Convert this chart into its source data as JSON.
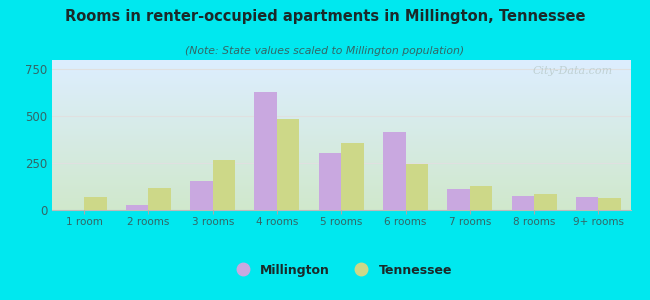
{
  "title": "Rooms in renter-occupied apartments in Millington, Tennessee",
  "subtitle": "(Note: State values scaled to Millington population)",
  "categories": [
    "1 room",
    "2 rooms",
    "3 rooms",
    "4 rooms",
    "5 rooms",
    "6 rooms",
    "7 rooms",
    "8 rooms",
    "9+ rooms"
  ],
  "millington": [
    0,
    28,
    155,
    630,
    305,
    415,
    110,
    75,
    72
  ],
  "tennessee": [
    72,
    115,
    268,
    485,
    360,
    245,
    130,
    88,
    65
  ],
  "millington_color": "#c9a8e0",
  "tennessee_color": "#cdd888",
  "bar_width": 0.35,
  "ylim": [
    0,
    800
  ],
  "yticks": [
    0,
    250,
    500,
    750
  ],
  "background_color": "#00e8ef",
  "plot_bg_tl": "#ddeeff",
  "plot_bg_br": "#d0e8cc",
  "grid_color": "#e0e0e0",
  "title_color": "#1a2a2a",
  "subtitle_color": "#336666",
  "tick_color": "#336666",
  "watermark": "City-Data.com",
  "legend_millington": "Millington",
  "legend_tennessee": "Tennessee"
}
